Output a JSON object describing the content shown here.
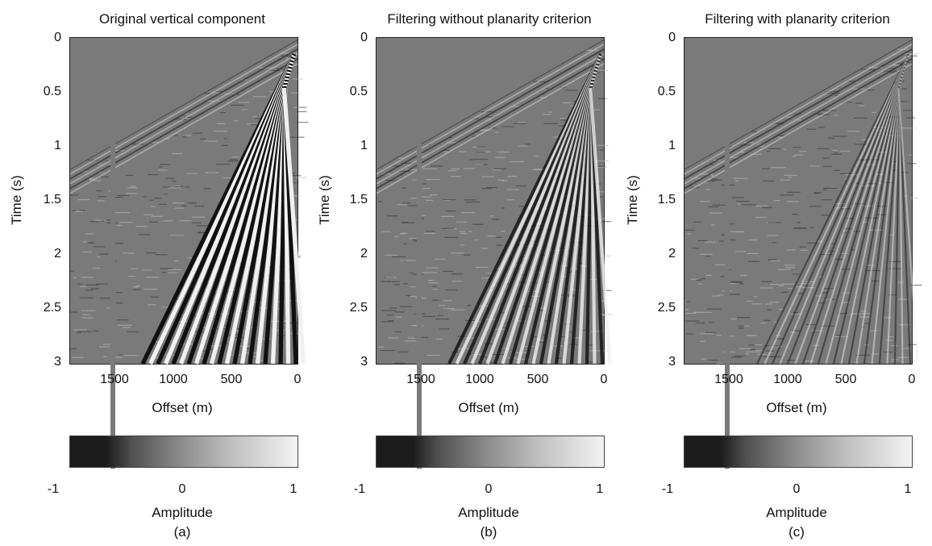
{
  "panels": [
    {
      "title": "Original vertical component",
      "ylabel": "Time (s)",
      "xlabel": "Offset (m)",
      "colorbar_label": "Amplitude",
      "sublabel": "(a)",
      "yticks": [
        "0",
        "0.5",
        "1",
        "1.5",
        "2",
        "2.5",
        "3"
      ],
      "xticks": [
        "1500",
        "1000",
        "500",
        "0"
      ],
      "cticks": [
        "-1",
        "0",
        "1"
      ]
    },
    {
      "title": "Filtering without planarity criterion",
      "ylabel": "Time (s)",
      "xlabel": "Offset (m)",
      "colorbar_label": "Amplitude",
      "sublabel": "(b)",
      "yticks": [
        "0",
        "0.5",
        "1",
        "1.5",
        "2",
        "2.5",
        "3"
      ],
      "xticks": [
        "1500",
        "1000",
        "500",
        "0"
      ],
      "cticks": [
        "-1",
        "0",
        "1"
      ]
    },
    {
      "title": "Filtering with planarity criterion",
      "ylabel": "Time (s)",
      "xlabel": "Offset (m)",
      "colorbar_label": "Amplitude",
      "sublabel": "(c)",
      "yticks": [
        "0",
        "0.5",
        "1",
        "1.5",
        "2",
        "2.5",
        "3"
      ],
      "xticks": [
        "1500",
        "1000",
        "500",
        "0"
      ],
      "cticks": [
        "-1",
        "0",
        "1"
      ]
    }
  ],
  "colors": {
    "background_gray": "#7a7a7a",
    "dark": "#1c1c1c",
    "light": "#f3f3f3"
  },
  "strength": [
    1.0,
    0.75,
    0.3
  ]
}
